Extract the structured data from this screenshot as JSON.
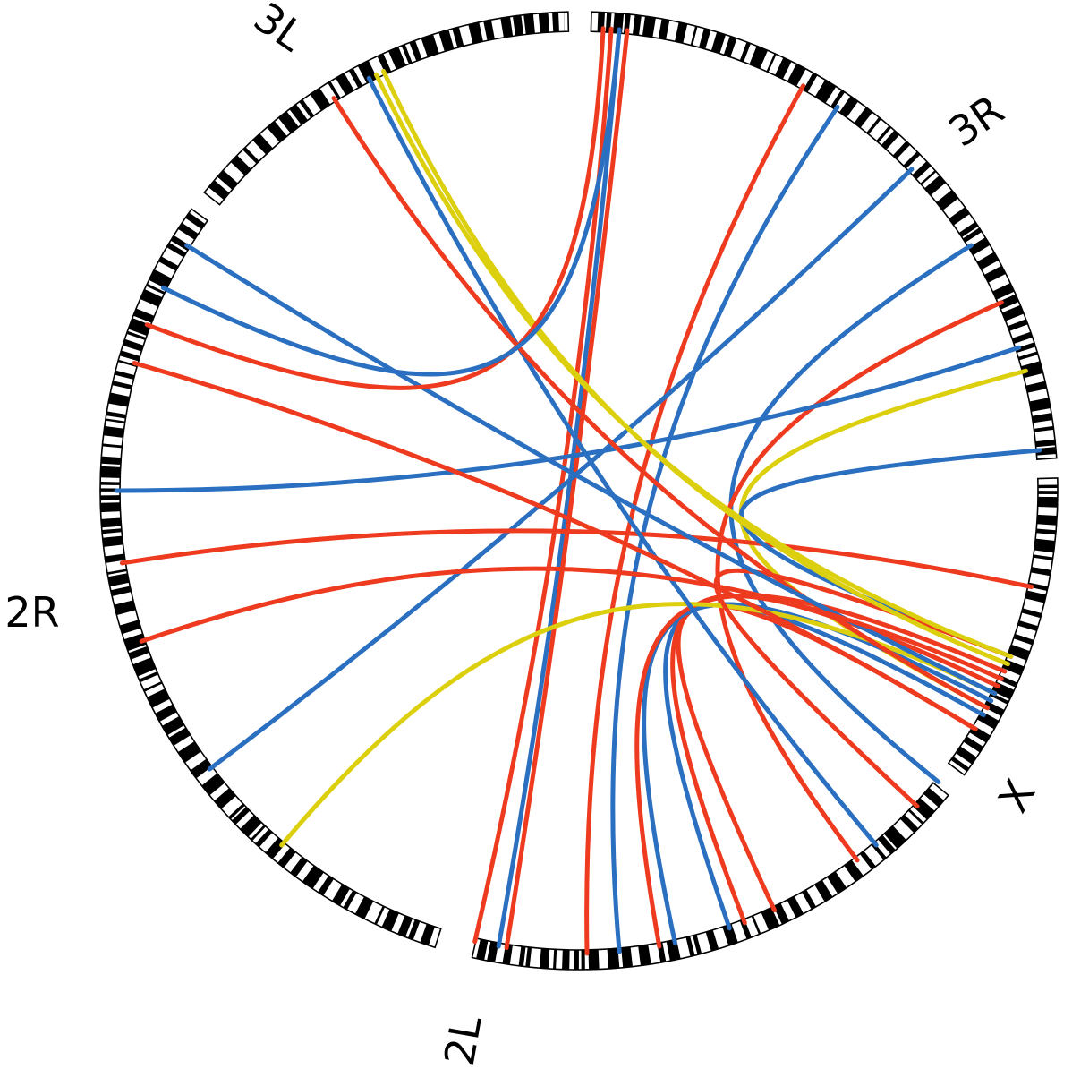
{
  "colors": {
    "red": "#ee3a1f",
    "blue": "#2a6fc0",
    "yellow": "#dccf0e",
    "band": "#000000",
    "background": "#ffffff"
  },
  "chromosomes": [
    {
      "id": "3L",
      "label": "3L",
      "start": 218.5,
      "end": 268.7
    },
    {
      "id": "3R",
      "label": "3R",
      "start": 271.5,
      "end": 356.1
    },
    {
      "id": "X",
      "label": "X",
      "start": 358.5,
      "end": 36.4
    },
    {
      "id": "2L",
      "label": "2L",
      "start": 39.5,
      "end": 102.9
    },
    {
      "id": "2R",
      "label": "2R",
      "start": 107.5,
      "end": 216.0
    }
  ],
  "links": [
    {
      "color": "red",
      "from": 274,
      "to": 103
    },
    {
      "color": "blue",
      "from": 275,
      "to": 100
    },
    {
      "color": "red",
      "from": 276,
      "to": 99
    },
    {
      "color": "red",
      "from": 299,
      "to": 89
    },
    {
      "color": "blue",
      "from": 304,
      "to": 85
    },
    {
      "color": "blue",
      "from": 316,
      "to": 143
    },
    {
      "color": "blue",
      "from": 328,
      "to": 39
    },
    {
      "color": "red",
      "from": 336,
      "to": 53
    },
    {
      "color": "blue",
      "from": 342,
      "to": 180
    },
    {
      "color": "yellow",
      "from": 345,
      "to": 28
    },
    {
      "color": "red",
      "from": 12,
      "to": 171
    },
    {
      "color": "blue",
      "from": 21,
      "to": 355
    },
    {
      "color": "red",
      "from": 31,
      "to": 65
    },
    {
      "color": "blue",
      "from": 29,
      "to": 71
    },
    {
      "color": "red",
      "from": 25,
      "to": 69
    },
    {
      "color": "blue",
      "from": 27,
      "to": 78
    },
    {
      "color": "red",
      "from": 23,
      "to": 80
    },
    {
      "color": "yellow",
      "from": 26,
      "to": 130
    },
    {
      "color": "red",
      "from": 21,
      "to": 43
    },
    {
      "color": "yellow",
      "from": 22,
      "to": 245
    },
    {
      "color": "blue",
      "from": 243,
      "to": 50
    },
    {
      "color": "red",
      "from": 238,
      "to": 28
    },
    {
      "color": "red",
      "from": 196,
      "to": 31
    },
    {
      "color": "blue",
      "from": 212,
      "to": 26
    },
    {
      "color": "yellow",
      "from": 21,
      "to": 244
    },
    {
      "color": "red",
      "from": 161,
      "to": 24
    },
    {
      "color": "red",
      "from": 201,
      "to": 273
    },
    {
      "color": "blue",
      "from": 206,
      "to": 275
    }
  ]
}
